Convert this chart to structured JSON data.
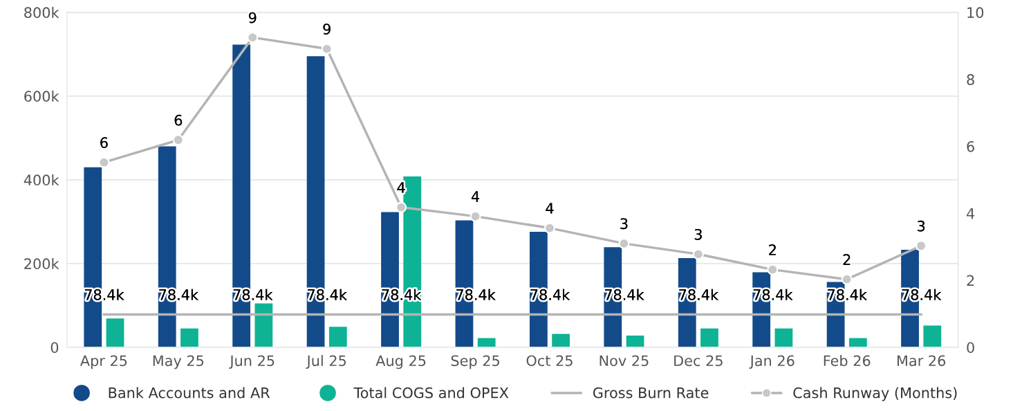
{
  "chart_data": {
    "type": "bar",
    "categories": [
      "Apr 25",
      "May 25",
      "Jun 25",
      "Jul 25",
      "Aug 25",
      "Sep 25",
      "Oct 25",
      "Nov 25",
      "Dec 25",
      "Jan 26",
      "Feb 26",
      "Mar 26"
    ],
    "series": [
      {
        "name": "Bank Accounts and AR",
        "color": "#134a8a",
        "values": [
          430000,
          480000,
          723000,
          695000,
          323000,
          303000,
          276000,
          239000,
          213000,
          179000,
          156000,
          233000
        ]
      },
      {
        "name": "Total COGS and OPEX",
        "color": "#0db394",
        "values": [
          69000,
          45000,
          105000,
          49000,
          408000,
          22000,
          32000,
          28000,
          45000,
          45000,
          22000,
          52000
        ]
      },
      {
        "name": "Gross Burn Rate",
        "type": "line",
        "color": "#b4b4b4",
        "marker": "none",
        "values": [
          78400,
          78400,
          78400,
          78400,
          78400,
          78400,
          78400,
          78400,
          78400,
          78400,
          78400,
          78400
        ],
        "value_labels": [
          "78.4k",
          "78.4k",
          "78.4k",
          "78.4k",
          "78.4k",
          "78.4k",
          "78.4k",
          "78.4k",
          "78.4k",
          "78.4k",
          "78.4k",
          "78.4k"
        ]
      },
      {
        "name": "Cash Runway (Months)",
        "type": "line",
        "axis": "y2",
        "color": "#b4b4b4",
        "marker": "circle",
        "values": [
          5.52,
          6.19,
          9.25,
          8.91,
          4.18,
          3.91,
          3.56,
          3.1,
          2.78,
          2.32,
          2.03,
          3.03
        ],
        "value_labels": [
          "6",
          "6",
          "9",
          "9",
          "4",
          "4",
          "4",
          "3",
          "3",
          "2",
          "2",
          "3"
        ]
      }
    ],
    "ylim": [
      0,
      800000
    ],
    "yticks": [
      {
        "value": 0,
        "label": "0"
      },
      {
        "value": 200000,
        "label": "200k"
      },
      {
        "value": 400000,
        "label": "400k"
      },
      {
        "value": 600000,
        "label": "600k"
      },
      {
        "value": 800000,
        "label": "800k"
      }
    ],
    "y2lim": [
      0,
      10
    ],
    "y2ticks": [
      0,
      2,
      4,
      6,
      8,
      10
    ],
    "grid": "y",
    "legend": "bottom",
    "line_style": "solid"
  }
}
